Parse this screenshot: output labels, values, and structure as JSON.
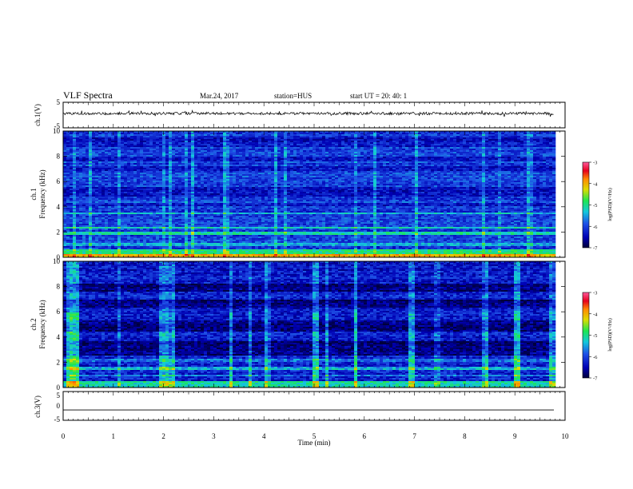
{
  "header": {
    "title": "VLF Spectra",
    "date": "Mar.24, 2017",
    "station": "station=HUS",
    "start": "start UT =   20: 40: 1"
  },
  "chart_data": [
    {
      "type": "line",
      "panel": "ch1-waveform",
      "ylabel": "ch.1(V)",
      "ylim": [
        -5,
        5
      ],
      "yticks": [
        "5",
        "-5"
      ],
      "xlim": [
        0,
        10
      ],
      "trace_color": "#000000"
    },
    {
      "type": "heatmap",
      "panel": "ch1-spectrogram",
      "ylabel": "ch.1\nFrequency (kHz)",
      "ylim": [
        0,
        10
      ],
      "yticks": [
        "0",
        "2",
        "4",
        "6",
        "8",
        "10"
      ],
      "xlim": [
        0,
        10
      ],
      "colorbar": {
        "label": "log(PSD)(V²/Hz)",
        "range": [
          -7,
          -3
        ],
        "ticks": [
          "-3",
          "-4",
          "-5",
          "-6",
          "-7"
        ]
      }
    },
    {
      "type": "heatmap",
      "panel": "ch2-spectrogram",
      "ylabel": "ch.2\nFrequency (kHz)",
      "ylim": [
        0,
        10
      ],
      "yticks": [
        "0",
        "2",
        "4",
        "6",
        "8",
        "10"
      ],
      "xlim": [
        0,
        10
      ],
      "colorbar": {
        "label": "log(PSD)(V²/Hz)",
        "range": [
          -7,
          -3
        ],
        "ticks": [
          "-3",
          "-4",
          "-5",
          "-6",
          "-7"
        ]
      }
    },
    {
      "type": "line",
      "panel": "ch3-waveform",
      "ylabel": "ch.3(V)",
      "ylim": [
        -5,
        5
      ],
      "yticks": [
        "5",
        "0",
        "-5"
      ],
      "xlim": [
        0,
        10
      ],
      "value": -1.4,
      "trace_color": "#000000"
    }
  ],
  "xaxis": {
    "label": "Time (min)",
    "ticks": [
      "0",
      "1",
      "2",
      "3",
      "4",
      "5",
      "6",
      "7",
      "8",
      "9",
      "10"
    ]
  },
  "colors": {
    "colormap": [
      "#00003a",
      "#0000b4",
      "#1e50e6",
      "#14c8dc",
      "#1ee650",
      "#dcdc00",
      "#ff8c00",
      "#e6001e",
      "#ff5a9b"
    ]
  }
}
